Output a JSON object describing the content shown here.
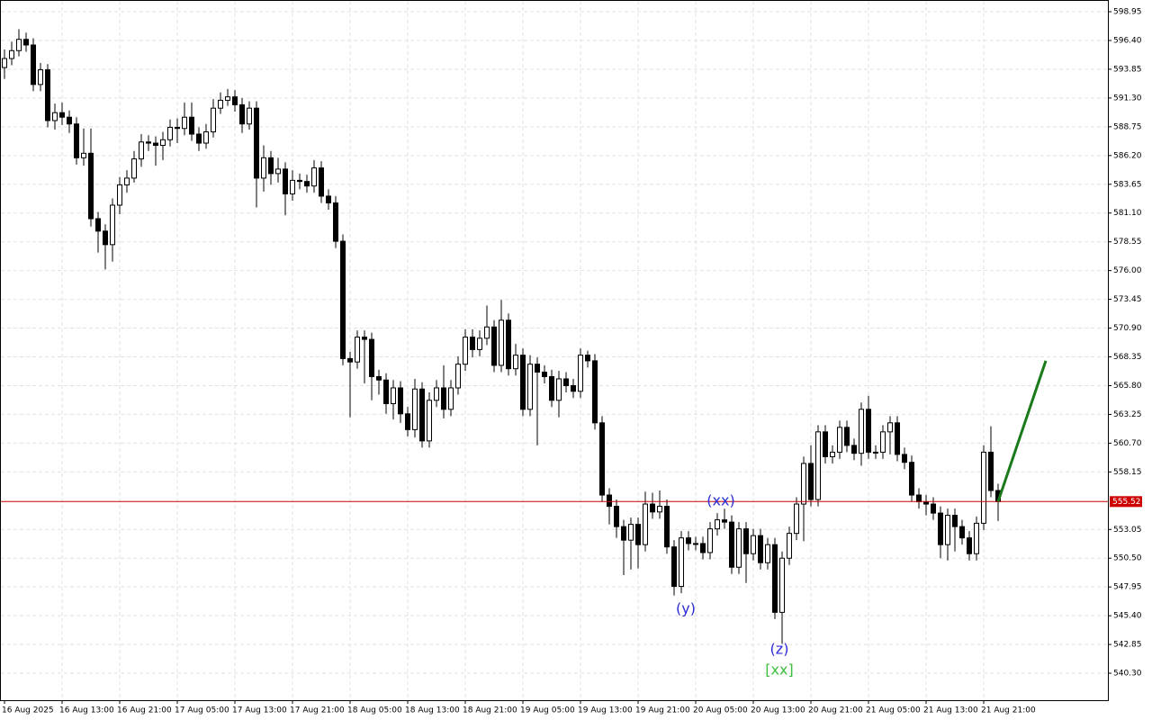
{
  "chart_data": {
    "type": "candlestick",
    "open": [
      594.0,
      594.8,
      595.5,
      596.5,
      596.0,
      592.5,
      593.8,
      589.3,
      590.0,
      589.6,
      589.0,
      586.0,
      586.4,
      580.6,
      579.5,
      578.3,
      581.8,
      583.6,
      584.2,
      585.9,
      587.4,
      587.3,
      587.1,
      587.6,
      588.7,
      588.6,
      589.6,
      588.1,
      587.3,
      588.3,
      590.4,
      591.1,
      591.4,
      590.7,
      589.0,
      590.4,
      584.2,
      586.0,
      584.6,
      585.0,
      582.8,
      584.0,
      583.9,
      583.5,
      585.1,
      582.6,
      582.0,
      578.6,
      568.2,
      567.9,
      570.1,
      569.9,
      566.6,
      566.3,
      564.2,
      565.6,
      563.3,
      561.9,
      565.5,
      560.9,
      564.5,
      565.6,
      563.7,
      565.6,
      567.7,
      570.1,
      569.0,
      570.0,
      571.0,
      567.6,
      571.6,
      567.3,
      568.5,
      563.7,
      567.7,
      567.0,
      566.6,
      564.5,
      566.4,
      565.8,
      565.3,
      568.5,
      568.0,
      562.5,
      556.1,
      555.1,
      553.3,
      552.1,
      553.5,
      551.7,
      555.3,
      554.6,
      555.1,
      551.5,
      548.0,
      552.3,
      551.8,
      551.8,
      551.0,
      553.1,
      553.9,
      553.7,
      549.7,
      553.1,
      550.9,
      552.5,
      550.1,
      551.7,
      545.7,
      550.5,
      552.7,
      555.3,
      558.9,
      555.7,
      561.7,
      559.5,
      559.9,
      562.1,
      560.5,
      559.8,
      563.7,
      559.9,
      559.9,
      561.7,
      562.5,
      559.7,
      559.0,
      556.1,
      555.5,
      555.3,
      554.5,
      551.7,
      554.3,
      553.3,
      552.3,
      550.9,
      553.6,
      559.9,
      556.5
    ],
    "high": [
      595.6,
      596.3,
      597.4,
      597.1,
      596.6,
      594.4,
      594.3,
      590.8,
      590.9,
      590.2,
      589.6,
      588.6,
      588.6,
      581.2,
      580.1,
      582.4,
      584.3,
      584.9,
      586.6,
      588.1,
      588.0,
      587.9,
      588.3,
      589.4,
      589.5,
      590.9,
      590.9,
      588.7,
      589.0,
      591.2,
      591.8,
      592.1,
      592.0,
      591.3,
      591.0,
      591.0,
      587.1,
      586.6,
      586.0,
      585.6,
      584.9,
      584.6,
      584.5,
      585.8,
      585.7,
      583.2,
      582.6,
      579.2,
      568.8,
      570.7,
      570.7,
      570.5,
      567.2,
      566.9,
      566.3,
      566.2,
      563.9,
      566.4,
      566.1,
      565.2,
      566.3,
      567.6,
      566.3,
      568.4,
      570.8,
      570.8,
      570.7,
      572.9,
      571.6,
      573.4,
      572.2,
      569.5,
      569.1,
      568.5,
      568.3,
      567.6,
      567.2,
      567.1,
      567.0,
      566.4,
      569.1,
      568.9,
      568.6,
      563.1,
      556.7,
      555.7,
      553.9,
      554.1,
      554.1,
      556.4,
      556.3,
      556.5,
      555.7,
      552.1,
      552.9,
      552.9,
      552.4,
      552.4,
      553.7,
      554.5,
      554.9,
      554.3,
      553.7,
      553.7,
      553.1,
      553.1,
      552.3,
      552.3,
      551.1,
      553.3,
      555.9,
      559.5,
      560.5,
      562.3,
      562.3,
      560.5,
      562.7,
      562.7,
      561.1,
      564.3,
      564.9,
      560.5,
      562.3,
      563.1,
      563.1,
      560.3,
      559.6,
      556.7,
      556.1,
      555.9,
      555.1,
      554.9,
      554.9,
      553.9,
      552.9,
      554.2,
      560.5,
      562.2,
      557.1
    ],
    "low": [
      593.0,
      594.2,
      595.0,
      595.4,
      591.9,
      591.9,
      588.7,
      588.5,
      588.9,
      588.2,
      585.4,
      585.3,
      579.9,
      577.6,
      576.1,
      576.8,
      581.0,
      582.9,
      583.8,
      585.2,
      586.6,
      585.3,
      585.8,
      587.0,
      587.3,
      588.0,
      587.5,
      586.6,
      586.8,
      587.8,
      589.9,
      590.6,
      590.1,
      588.2,
      588.5,
      581.6,
      583.0,
      583.6,
      583.8,
      580.9,
      582.2,
      583.2,
      582.9,
      582.9,
      582.0,
      581.4,
      578.0,
      567.6,
      563.0,
      567.3,
      566.0,
      564.5,
      565.0,
      563.3,
      562.8,
      562.5,
      561.3,
      561.2,
      560.3,
      560.3,
      563.9,
      562.9,
      563.1,
      565.0,
      567.1,
      568.3,
      568.4,
      569.4,
      567.0,
      567.0,
      566.7,
      566.7,
      563.1,
      563.1,
      560.5,
      566.0,
      563.9,
      563.0,
      565.2,
      564.7,
      564.7,
      567.4,
      561.9,
      555.5,
      553.5,
      552.3,
      549.0,
      549.5,
      549.6,
      551.1,
      554.0,
      554.0,
      550.9,
      547.2,
      547.4,
      551.2,
      551.2,
      550.4,
      550.4,
      552.5,
      553.1,
      549.1,
      549.1,
      548.3,
      550.3,
      549.5,
      549.5,
      545.1,
      542.9,
      549.9,
      552.1,
      552.0,
      555.1,
      555.1,
      558.9,
      558.9,
      559.3,
      559.9,
      559.2,
      558.7,
      559.3,
      559.3,
      559.3,
      559.7,
      559.1,
      558.4,
      555.5,
      554.9,
      554.3,
      553.9,
      550.5,
      550.3,
      551.1,
      551.7,
      550.3,
      550.3,
      553.0,
      555.9,
      553.8
    ],
    "close": [
      594.8,
      595.5,
      596.5,
      596.0,
      592.5,
      593.8,
      589.3,
      590.0,
      589.6,
      589.0,
      586.0,
      586.4,
      580.6,
      579.5,
      578.3,
      581.8,
      583.6,
      584.2,
      585.9,
      587.4,
      587.3,
      587.1,
      587.6,
      588.7,
      588.6,
      589.6,
      588.1,
      587.3,
      588.3,
      590.4,
      591.1,
      591.4,
      590.7,
      589.0,
      590.4,
      584.2,
      586.0,
      584.6,
      585.0,
      582.8,
      584.0,
      583.9,
      583.5,
      585.1,
      582.6,
      582.0,
      578.6,
      568.2,
      567.9,
      570.1,
      569.9,
      566.6,
      566.3,
      564.2,
      565.6,
      563.3,
      561.9,
      565.5,
      560.9,
      564.5,
      565.6,
      563.7,
      565.6,
      567.7,
      570.1,
      569.0,
      570.0,
      571.0,
      567.6,
      571.6,
      567.3,
      568.5,
      563.7,
      567.7,
      567.0,
      566.6,
      564.5,
      566.4,
      565.8,
      565.3,
      568.5,
      568.0,
      562.5,
      556.1,
      555.1,
      553.3,
      552.1,
      553.5,
      551.7,
      555.3,
      554.6,
      555.1,
      551.5,
      548.0,
      552.3,
      551.8,
      551.8,
      551.0,
      553.1,
      553.9,
      553.7,
      549.7,
      553.1,
      550.9,
      552.5,
      550.1,
      551.7,
      545.7,
      550.5,
      552.7,
      555.3,
      558.9,
      555.7,
      561.7,
      559.5,
      559.9,
      562.1,
      560.5,
      559.8,
      563.7,
      559.9,
      559.9,
      561.7,
      562.5,
      559.7,
      559.0,
      556.1,
      555.5,
      555.3,
      554.5,
      551.7,
      554.3,
      553.3,
      552.3,
      550.9,
      553.6,
      559.9,
      556.5,
      555.52
    ],
    "bull_color": "#ffffff",
    "bear_color": "#000000",
    "ylim": [
      537.91,
      599.99
    ],
    "yticks": [
      {
        "value": 598.95,
        "label": "598.95"
      },
      {
        "value": 596.4,
        "label": "596.40"
      },
      {
        "value": 593.85,
        "label": "593.85"
      },
      {
        "value": 591.3,
        "label": "591.30"
      },
      {
        "value": 588.75,
        "label": "588.75"
      },
      {
        "value": 586.2,
        "label": "586.20"
      },
      {
        "value": 583.65,
        "label": "583.65"
      },
      {
        "value": 581.1,
        "label": "581.10"
      },
      {
        "value": 578.55,
        "label": "578.55"
      },
      {
        "value": 576.0,
        "label": "576.00"
      },
      {
        "value": 573.45,
        "label": "573.45"
      },
      {
        "value": 570.9,
        "label": "570.90"
      },
      {
        "value": 568.35,
        "label": "568.35"
      },
      {
        "value": 565.8,
        "label": "565.80"
      },
      {
        "value": 563.25,
        "label": "563.25"
      },
      {
        "value": 560.7,
        "label": "560.70"
      },
      {
        "value": 558.15,
        "label": "558.15"
      },
      {
        "value": 553.05,
        "label": "553.05"
      },
      {
        "value": 550.5,
        "label": "550.50"
      },
      {
        "value": 547.95,
        "label": "547.95"
      },
      {
        "value": 545.4,
        "label": "545.40"
      },
      {
        "value": 542.85,
        "label": "542.85"
      },
      {
        "value": 540.3,
        "label": "540.30"
      }
    ],
    "xtick_labels": [
      "16 Aug 2025",
      "16 Aug 13:00",
      "16 Aug 21:00",
      "17 Aug 05:00",
      "17 Aug 13:00",
      "17 Aug 21:00",
      "18 Aug 05:00",
      "18 Aug 13:00",
      "18 Aug 21:00",
      "19 Aug 05:00",
      "19 Aug 13:00",
      "19 Aug 21:00",
      "20 Aug 05:00",
      "20 Aug 13:00",
      "20 Aug 21:00",
      "21 Aug 05:00",
      "21 Aug 13:00",
      "21 Aug 21:00"
    ],
    "grid": true,
    "last_price": {
      "value": 555.52,
      "color": "#cc0000"
    },
    "forecast": {
      "color": "#1a7a1a",
      "values": [
        555.52,
        568.0
      ]
    },
    "annotations": [
      {
        "text": "(xx)",
        "color": "#2b2bd6"
      },
      {
        "text": "(y)",
        "color": "#2b2bd6"
      },
      {
        "text": "(z)",
        "color": "#2b2bd6"
      },
      {
        "text": "[xx]",
        "color": "#3fbf3f"
      }
    ]
  }
}
